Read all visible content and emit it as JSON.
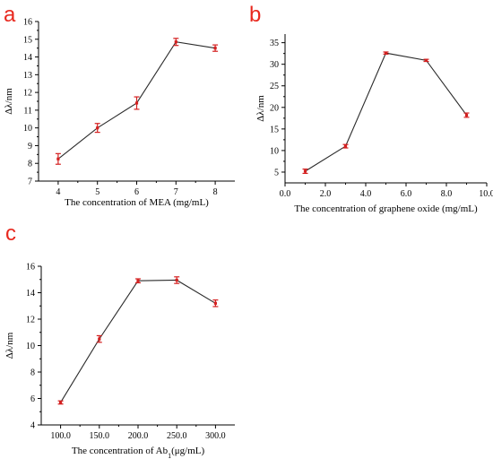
{
  "chart_data": [
    {
      "type": "line",
      "panel_label": "a",
      "xlabel": "The concentration of MEA (mg/mL)",
      "ylabel": "Δλ/nm",
      "x": [
        4,
        5,
        6,
        7,
        8
      ],
      "y": [
        8.25,
        10.0,
        11.4,
        14.85,
        14.5
      ],
      "yerr": [
        0.3,
        0.25,
        0.35,
        0.2,
        0.18
      ],
      "xlim": [
        3.5,
        8.5
      ],
      "ylim": [
        7,
        16
      ],
      "xticks": [
        "4",
        "5",
        "6",
        "7",
        "8"
      ],
      "yticks": [
        "7",
        "8",
        "9",
        "10",
        "11",
        "12",
        "13",
        "14",
        "15",
        "16"
      ],
      "line_color": "#2b2b2b",
      "errorbar_color": "#d42020",
      "grid": false
    },
    {
      "type": "line",
      "panel_label": "b",
      "xlabel": "The concentration of graphene oxide (mg/mL)",
      "ylabel": "Δλ/nm",
      "x": [
        1,
        3,
        5,
        7,
        9
      ],
      "y": [
        5.2,
        11.0,
        32.6,
        30.9,
        18.2
      ],
      "yerr": [
        0.5,
        0.4,
        0.25,
        0.25,
        0.5
      ],
      "xlim": [
        0,
        10
      ],
      "ylim": [
        2.5,
        37
      ],
      "xticks": [
        "0.0",
        "2.0",
        "4.0",
        "6.0",
        "8.0",
        "10.0"
      ],
      "yticks": [
        "5",
        "10",
        "15",
        "20",
        "25",
        "30",
        "35"
      ],
      "line_color": "#2b2b2b",
      "errorbar_color": "#d42020",
      "grid": false
    },
    {
      "type": "line",
      "panel_label": "c",
      "xlabel": "The concentration of Ab1(μg/mL)",
      "xlabel_main": "The concentration of Ab",
      "xlabel_sub": "1",
      "xlabel_tail": "(μg/mL)",
      "ylabel": "Δλ/nm",
      "x": [
        100,
        150,
        200,
        250,
        300
      ],
      "y": [
        5.7,
        10.5,
        14.9,
        14.95,
        13.2
      ],
      "yerr": [
        0.12,
        0.25,
        0.15,
        0.25,
        0.25
      ],
      "xlim": [
        75,
        325
      ],
      "ylim": [
        4,
        16
      ],
      "xticks": [
        "100.0",
        "150.0",
        "200.0",
        "250.0",
        "300.0"
      ],
      "yticks": [
        "4",
        "6",
        "8",
        "10",
        "12",
        "14",
        "16"
      ],
      "line_color": "#2b2b2b",
      "errorbar_color": "#d42020",
      "grid": false
    }
  ]
}
